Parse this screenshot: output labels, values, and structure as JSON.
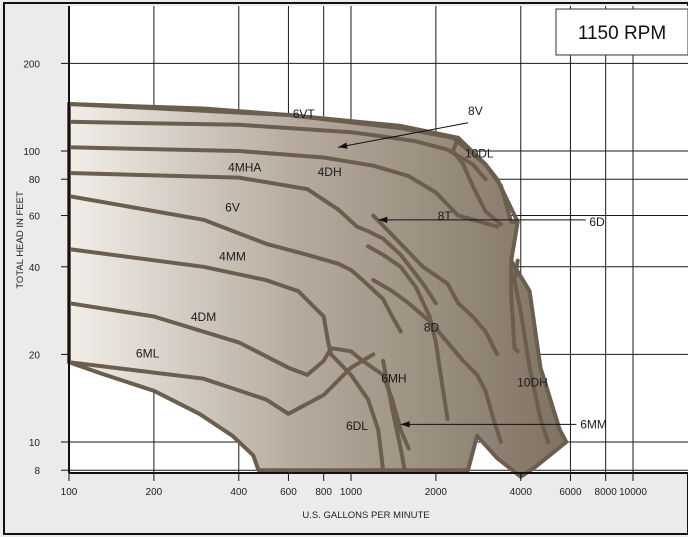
{
  "chart_data": {
    "type": "area",
    "title": "1150 RPM",
    "xlabel": "U.S. GALLONS PER MINUTE",
    "ylabel": "TOTAL HEAD IN FEET",
    "x_scale": "log",
    "y_scale": "log",
    "xlim": [
      100,
      15000
    ],
    "ylim": [
      8,
      300
    ],
    "x_ticks": [
      100,
      200,
      400,
      600,
      800,
      1000,
      2000,
      4000,
      6000,
      8000,
      10000
    ],
    "y_ticks": [
      8,
      10,
      20,
      40,
      60,
      80,
      100,
      200
    ],
    "grid": true,
    "colors": {
      "background": "#ebebeb",
      "plot_bg": "#ffffff",
      "grid": "#1a1a1a",
      "fill_dark": "#8a7d6c",
      "fill_light": "#ece7e1",
      "outline": "#6b5e4f",
      "frame": "#111111"
    },
    "envelope": [
      [
        100,
        145
      ],
      [
        300,
        140
      ],
      [
        600,
        133
      ],
      [
        1100,
        124
      ],
      [
        1500,
        120
      ],
      [
        2300,
        111
      ],
      [
        3000,
        90
      ],
      [
        3400,
        76
      ],
      [
        3700,
        57
      ],
      [
        3900,
        57
      ],
      [
        3700,
        42
      ],
      [
        4300,
        33
      ],
      [
        4700,
        18
      ],
      [
        5500,
        11
      ],
      [
        5800,
        10
      ],
      [
        4500,
        8.2
      ],
      [
        4000,
        7.6
      ],
      [
        3300,
        8.8
      ],
      [
        2800,
        10.5
      ],
      [
        2600,
        8
      ],
      [
        470,
        8
      ],
      [
        450,
        9
      ],
      [
        380,
        10.5
      ],
      [
        290,
        12.5
      ],
      [
        200,
        15
      ],
      [
        130,
        17.2
      ],
      [
        100,
        18.8
      ]
    ],
    "curves": [
      {
        "name": "6VT",
        "points": [
          [
            100,
            145
          ],
          [
            600,
            133
          ],
          [
            1500,
            122
          ],
          [
            2400,
            111
          ],
          [
            3000,
            90
          ],
          [
            3300,
            80
          ],
          [
            3900,
            57
          ]
        ]
      },
      {
        "name": "8V",
        "points": [
          [
            100,
            126
          ],
          [
            400,
            123
          ],
          [
            1000,
            116
          ],
          [
            1400,
            111
          ],
          [
            1700,
            108
          ],
          [
            2200,
            101
          ],
          [
            2700,
            90
          ],
          [
            3000,
            80
          ]
        ]
      },
      {
        "name": "4MHA",
        "points": [
          [
            100,
            103
          ],
          [
            400,
            100
          ],
          [
            800,
            95
          ],
          [
            1200,
            89
          ],
          [
            1600,
            82
          ],
          [
            2000,
            72
          ],
          [
            2400,
            60
          ],
          [
            3300,
            55
          ]
        ]
      },
      {
        "name": "4DH",
        "points": [
          [
            100,
            84
          ],
          [
            400,
            81
          ],
          [
            700,
            74
          ],
          [
            900,
            63
          ],
          [
            1050,
            55
          ],
          [
            1150,
            53
          ],
          [
            1300,
            50
          ],
          [
            1500,
            44
          ],
          [
            1800,
            35
          ],
          [
            2000,
            30
          ]
        ]
      },
      {
        "name": "6V",
        "points": [
          [
            100,
            70
          ],
          [
            300,
            58
          ],
          [
            500,
            48
          ],
          [
            700,
            44
          ],
          [
            900,
            41
          ],
          [
            1000,
            39
          ],
          [
            1100,
            36
          ],
          [
            1300,
            31
          ],
          [
            1400,
            27
          ],
          [
            1500,
            24
          ]
        ]
      },
      {
        "name": "8T",
        "points": [
          [
            1200,
            60
          ],
          [
            1500,
            48
          ],
          [
            1800,
            40
          ],
          [
            2200,
            35
          ],
          [
            2400,
            30
          ],
          [
            2700,
            27
          ],
          [
            3000,
            24
          ],
          [
            3300,
            20
          ]
        ]
      },
      {
        "name": "4MM",
        "points": [
          [
            100,
            46
          ],
          [
            300,
            40
          ],
          [
            500,
            36
          ],
          [
            650,
            33
          ],
          [
            800,
            27
          ],
          [
            830,
            22
          ],
          [
            850,
            20
          ]
        ]
      },
      {
        "name": "6D",
        "points": [
          [
            1150,
            47
          ],
          [
            1300,
            44
          ],
          [
            1500,
            40
          ],
          [
            1700,
            34
          ],
          [
            1900,
            27
          ],
          [
            2000,
            22
          ],
          [
            2100,
            16
          ],
          [
            2200,
            12
          ]
        ]
      },
      {
        "name": "4DM",
        "points": [
          [
            100,
            30
          ],
          [
            200,
            27
          ],
          [
            400,
            22
          ],
          [
            600,
            18
          ],
          [
            700,
            17
          ],
          [
            800,
            19
          ],
          [
            850,
            21
          ],
          [
            1000,
            20.5
          ],
          [
            1100,
            19
          ],
          [
            1300,
            17
          ],
          [
            1400,
            14
          ],
          [
            1500,
            11
          ],
          [
            1600,
            9.5
          ]
        ]
      },
      {
        "name": "10DL",
        "points": [
          [
            2400,
            111
          ],
          [
            2300,
            100
          ],
          [
            2500,
            90
          ],
          [
            2700,
            76
          ],
          [
            3000,
            62
          ],
          [
            3400,
            56
          ]
        ]
      },
      {
        "name": "6ML",
        "points": [
          [
            100,
            18.8
          ],
          [
            300,
            16.5
          ],
          [
            500,
            14
          ],
          [
            600,
            12.5
          ],
          [
            800,
            14.5
          ],
          [
            1000,
            18
          ],
          [
            1200,
            20
          ]
        ]
      },
      {
        "name": "8D",
        "points": [
          [
            1200,
            36
          ],
          [
            1400,
            33
          ],
          [
            1600,
            30
          ],
          [
            1900,
            26
          ],
          [
            2200,
            22
          ],
          [
            2500,
            19
          ],
          [
            2800,
            17
          ],
          [
            3000,
            15
          ],
          [
            3200,
            12
          ],
          [
            3400,
            10
          ]
        ]
      },
      {
        "name": "10DH",
        "points": [
          [
            3700,
            42
          ],
          [
            3700,
            32
          ],
          [
            3800,
            21
          ],
          [
            3900,
            20.5
          ]
        ]
      },
      {
        "name": "6MH",
        "points": [
          [
            1300,
            19
          ],
          [
            1400,
            13
          ],
          [
            1500,
            9.5
          ],
          [
            1550,
            8
          ]
        ]
      },
      {
        "name": "6DL",
        "points": [
          [
            850,
            20
          ],
          [
            1000,
            17
          ],
          [
            1150,
            14
          ],
          [
            1250,
            11
          ],
          [
            1300,
            8
          ]
        ]
      },
      {
        "name": "6MM",
        "points": [
          [
            3900,
            42
          ],
          [
            3800,
            36
          ],
          [
            4000,
            28
          ],
          [
            4300,
            18
          ],
          [
            4700,
            12
          ],
          [
            5000,
            10
          ]
        ]
      }
    ],
    "region_labels": [
      {
        "text": "6VT",
        "x": 680,
        "y": 130
      },
      {
        "text": "10DL",
        "x": 2850,
        "y": 95
      },
      {
        "text": "4MHA",
        "x": 420,
        "y": 85
      },
      {
        "text": "4DH",
        "x": 840,
        "y": 82
      },
      {
        "text": "6V",
        "x": 380,
        "y": 62
      },
      {
        "text": "8T",
        "x": 2150,
        "y": 58
      },
      {
        "text": "4MM",
        "x": 380,
        "y": 42
      },
      {
        "text": "4DM",
        "x": 300,
        "y": 26
      },
      {
        "text": "8D",
        "x": 1930,
        "y": 24
      },
      {
        "text": "6ML",
        "x": 190,
        "y": 19.5
      },
      {
        "text": "6MH",
        "x": 1420,
        "y": 16
      },
      {
        "text": "10DH",
        "x": 4400,
        "y": 15.5
      },
      {
        "text": "6DL",
        "x": 1050,
        "y": 11
      }
    ],
    "callouts": [
      {
        "text": "8V",
        "label_x": 2600,
        "label_y": 137,
        "arrow_from_x": 2600,
        "arrow_from_y": 125,
        "arrow_to_x": 900,
        "arrow_to_y": 103
      },
      {
        "text": "6D",
        "label_x": 7000,
        "label_y": 57,
        "arrow_from_x": 6800,
        "arrow_from_y": 58,
        "arrow_to_x": 1250,
        "arrow_to_y": 58
      },
      {
        "text": "6MM",
        "label_x": 6500,
        "label_y": 11.5,
        "arrow_from_x": 6300,
        "arrow_from_y": 11.5,
        "arrow_to_x": 1500,
        "arrow_to_y": 11.5
      }
    ]
  }
}
